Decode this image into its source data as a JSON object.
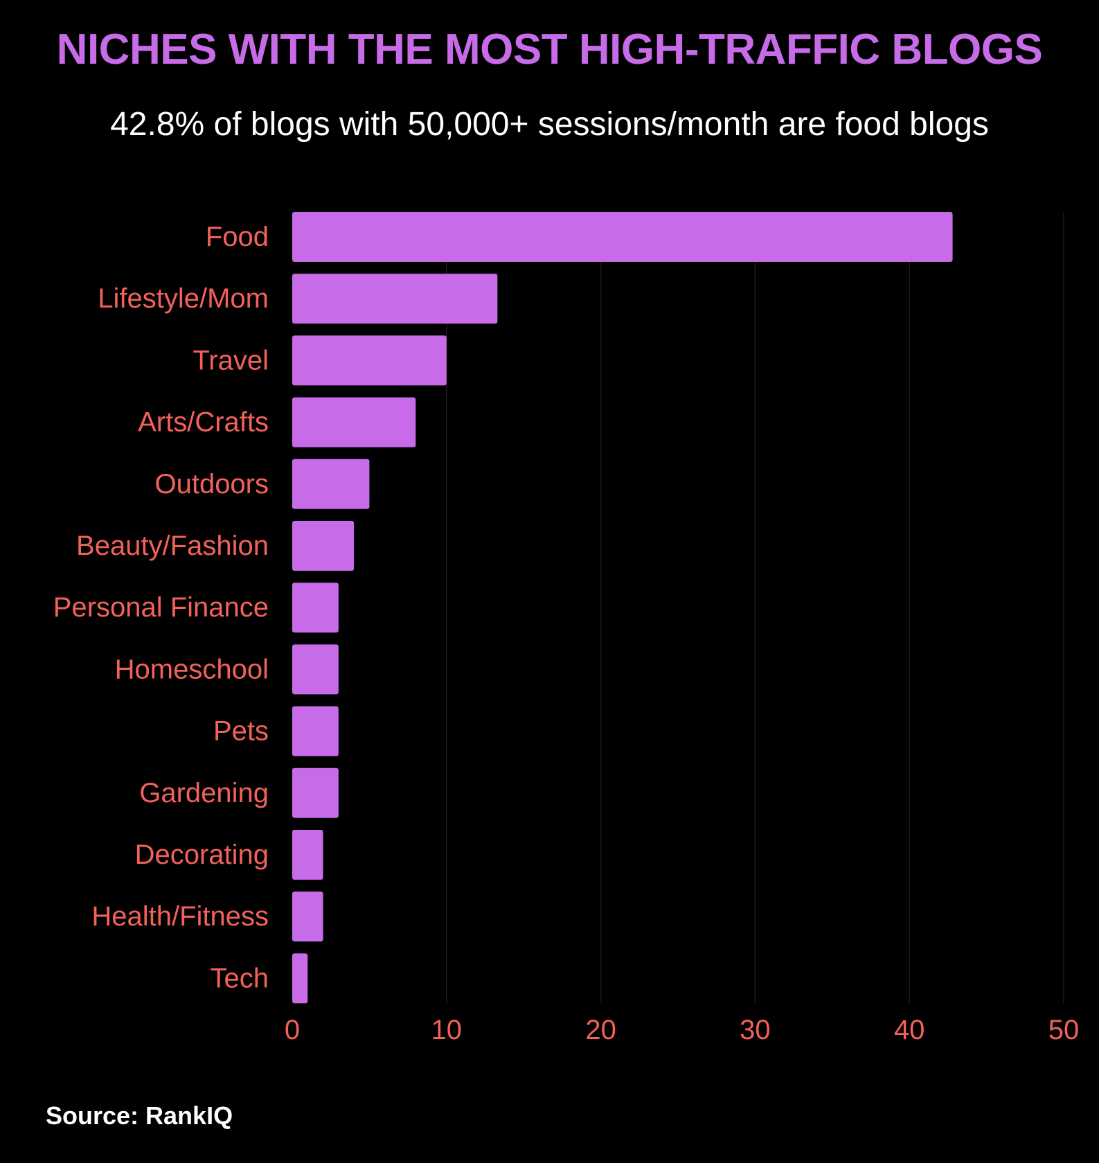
{
  "colors": {
    "background": "#000000",
    "title": "#c76be8",
    "bar": "#c76be8",
    "label": "#f2625a",
    "grid": "#2a1414",
    "subtitle": "#ffffff",
    "source": "#ffffff"
  },
  "header": {
    "title": "NICHES WITH THE MOST HIGH-TRAFFIC BLOGS",
    "subtitle": "42.8% of blogs with 50,000+ sessions/month are food blogs"
  },
  "footer": {
    "source": "Source: RankIQ"
  },
  "chart_data": {
    "type": "bar",
    "orientation": "horizontal",
    "title": "NICHES WITH THE MOST HIGH-TRAFFIC BLOGS",
    "subtitle": "42.8% of blogs with 50,000+ sessions/month are food blogs",
    "xlabel": "",
    "ylabel": "",
    "categories": [
      "Food",
      "Lifestyle/Mom",
      "Travel",
      "Arts/Crafts",
      "Outdoors",
      "Beauty/Fashion",
      "Personal Finance",
      "Homeschool",
      "Pets",
      "Gardening",
      "Decorating",
      "Health/Fitness",
      "Tech"
    ],
    "values": [
      42.8,
      13.3,
      10,
      8,
      5,
      4,
      3,
      3,
      3,
      3,
      2,
      2,
      1
    ],
    "xlim": [
      0,
      50
    ],
    "xticks": [
      0,
      10,
      20,
      30,
      40,
      50
    ],
    "xtick_labels": [
      "0",
      "10",
      "20",
      "30",
      "40",
      "50"
    ],
    "grid": "vertical",
    "legend": "none"
  }
}
